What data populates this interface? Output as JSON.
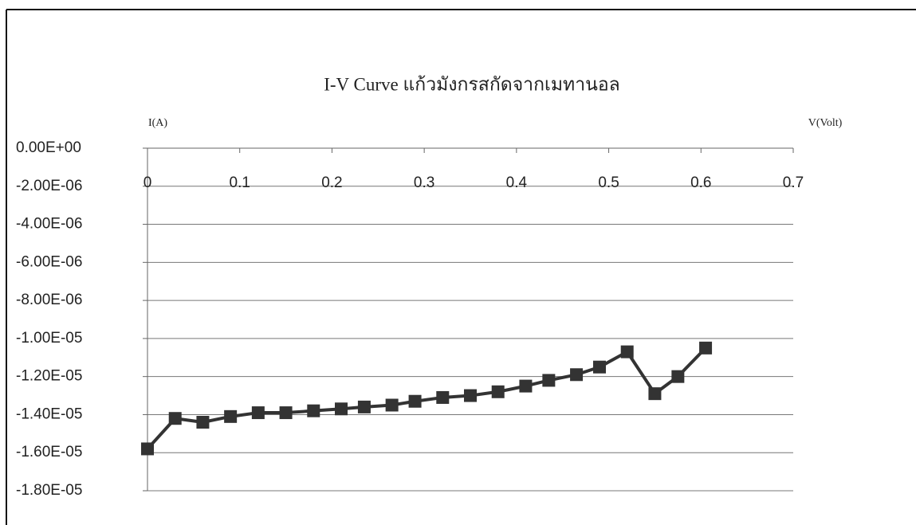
{
  "chart_data": {
    "type": "line",
    "title": "I-V Curve แก้วมังกรสกัดจากเมทานอล",
    "y_label": "I(A)",
    "x_label": "V(Volt)",
    "x": [
      0,
      0.03,
      0.06,
      0.09,
      0.12,
      0.15,
      0.18,
      0.21,
      0.235,
      0.265,
      0.29,
      0.32,
      0.35,
      0.38,
      0.41,
      0.435,
      0.465,
      0.49,
      0.52,
      0.55,
      0.575,
      0.605
    ],
    "series": [
      {
        "color": "#333333",
        "values": [
          -1.58e-05,
          -1.42e-05,
          -1.44e-05,
          -1.41e-05,
          -1.39e-05,
          -1.39e-05,
          -1.38e-05,
          -1.37e-05,
          -1.36e-05,
          -1.35e-05,
          -1.33e-05,
          -1.31e-05,
          -1.3e-05,
          -1.28e-05,
          -1.25e-05,
          -1.22e-05,
          -1.19e-05,
          -1.15e-05,
          -1.07e-05,
          -1.29e-05,
          -1.2e-05,
          -1.05e-05
        ]
      }
    ],
    "xlim": [
      0,
      0.7
    ],
    "xticks": [
      0,
      0.1,
      0.2,
      0.3,
      0.4,
      0.5,
      0.6,
      0.7
    ],
    "ylim": [
      -1.8e-05,
      0
    ],
    "yticks": [
      {
        "value": 0,
        "label": "0.00E+00"
      },
      {
        "value": -2e-06,
        "label": "-2.00E-06"
      },
      {
        "value": -4e-06,
        "label": "-4.00E-06"
      },
      {
        "value": -6e-06,
        "label": "-6.00E-06"
      },
      {
        "value": -8e-06,
        "label": "-8.00E-06"
      },
      {
        "value": -1e-05,
        "label": "-1.00E-05"
      },
      {
        "value": -1.2e-05,
        "label": "-1.20E-05"
      },
      {
        "value": -1.4e-05,
        "label": "-1.40E-05"
      },
      {
        "value": -1.6e-05,
        "label": "-1.60E-05"
      },
      {
        "value": -1.8e-05,
        "label": "-1.80E-05"
      }
    ],
    "grid": true
  }
}
